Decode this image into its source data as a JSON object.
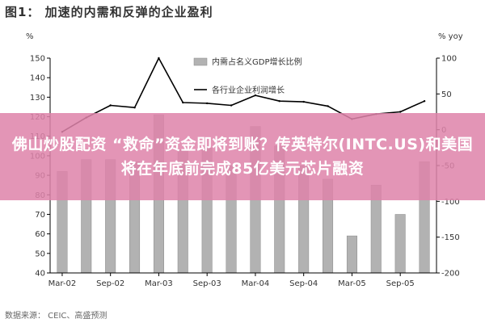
{
  "figure_title": "图1： 加速的内需和反弹的企业盈利",
  "source_text": "数据来源： CEIC、高盛预测",
  "banner_text": "佛山炒股配资 “救命”资金即将到账？传英特尔(INTC.US)和美国将在年底前完成85亿美元芯片融资",
  "colors": {
    "bar": "#b2b2b2",
    "line": "#000000",
    "banner": "#de84aa"
  },
  "chart_data": {
    "type": "bar+line",
    "left_axis_unit": "%",
    "right_axis_unit": "% yoy",
    "ylim_left": [
      40,
      150
    ],
    "ylim_right": [
      -200,
      100
    ],
    "left_ticks": [
      40,
      50,
      60,
      70,
      80,
      90,
      100,
      110,
      120,
      130,
      140,
      150
    ],
    "right_ticks": [
      -200,
      -150,
      -100,
      -50,
      0,
      50,
      100
    ],
    "x_labels": [
      "Mar-02",
      "Sep-02",
      "Mar-03",
      "Sep-03",
      "Mar-04",
      "Sep-04",
      "Mar-05",
      "Sep-05"
    ],
    "legend_position": "top-center",
    "series": [
      {
        "name": "内需占名义GDP增长比例",
        "type": "bar",
        "axis": "left",
        "values": [
          92,
          98,
          98,
          97,
          121,
          103,
          104,
          95,
          115,
          105,
          95,
          88,
          59,
          85,
          70,
          97
        ]
      },
      {
        "name": "各行业企业利润增长",
        "type": "line",
        "axis": "right",
        "values": [
          -3,
          17,
          34,
          31,
          100,
          38,
          37,
          34,
          48,
          40,
          39,
          33,
          15,
          22,
          25,
          40
        ]
      }
    ]
  }
}
